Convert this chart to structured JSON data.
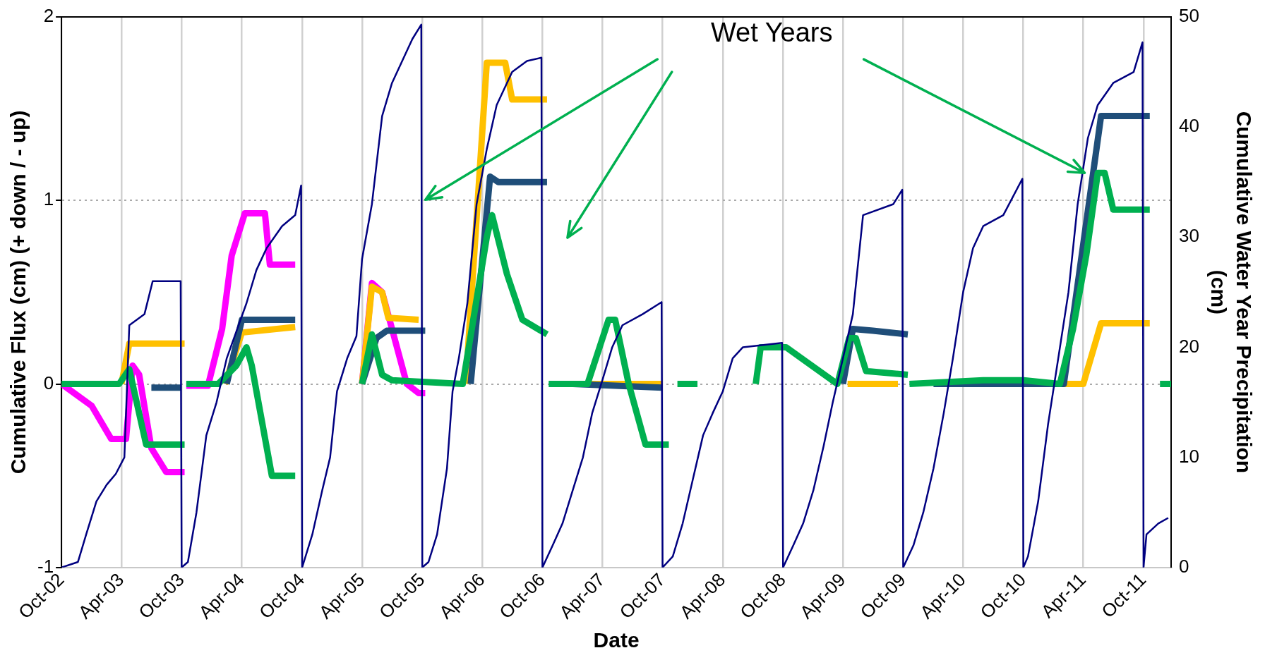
{
  "chart_data": {
    "type": "line",
    "xlabel": "Date",
    "ylabel": "Cumulative Flux (cm) (+ down / - up)",
    "y2label": "Cumulative Water Year Precipitation (cm)",
    "xlim": [
      "2002-10-01",
      "2011-12-24"
    ],
    "xticks": [
      {
        "value": "2002-10-01",
        "label": "Oct-02"
      },
      {
        "value": "2003-04-01",
        "label": "Apr-03"
      },
      {
        "value": "2003-10-01",
        "label": "Oct-03"
      },
      {
        "value": "2004-04-01",
        "label": "Apr-04"
      },
      {
        "value": "2004-10-01",
        "label": "Oct-04"
      },
      {
        "value": "2005-04-01",
        "label": "Apr-05"
      },
      {
        "value": "2005-10-01",
        "label": "Oct-05"
      },
      {
        "value": "2006-04-01",
        "label": "Apr-06"
      },
      {
        "value": "2006-10-01",
        "label": "Oct-06"
      },
      {
        "value": "2007-04-01",
        "label": "Apr-07"
      },
      {
        "value": "2007-10-01",
        "label": "Oct-07"
      },
      {
        "value": "2008-04-01",
        "label": "Apr-08"
      },
      {
        "value": "2008-10-01",
        "label": "Oct-08"
      },
      {
        "value": "2009-04-01",
        "label": "Apr-09"
      },
      {
        "value": "2009-10-01",
        "label": "Oct-09"
      },
      {
        "value": "2010-04-01",
        "label": "Apr-10"
      },
      {
        "value": "2010-10-01",
        "label": "Oct-10"
      },
      {
        "value": "2011-04-01",
        "label": "Apr-11"
      },
      {
        "value": "2011-10-01",
        "label": "Oct-11"
      }
    ],
    "ylim": [
      -1,
      2
    ],
    "yticks": [
      -1,
      0,
      1,
      2
    ],
    "y2lim": [
      0,
      50
    ],
    "y2ticks": [
      0,
      10,
      20,
      30,
      40,
      50
    ],
    "grid": true,
    "legend": false,
    "marker": "none",
    "line_style": "solid",
    "annotations": [
      {
        "text": "Wet Years",
        "x": "2011-04-05",
        "y": 1.15
      }
    ],
    "series": [
      {
        "color": "#ff00ff",
        "x": [
          "2002-10-01",
          "2003-01-01",
          "2003-03-01",
          "2003-04-15",
          "2003-05-05",
          "2003-05-25",
          "2003-07-01",
          "2003-08-15",
          "2003-10-10",
          "2003-10-12",
          "2003-10-15",
          "2003-12-20",
          "2004-02-01",
          "2004-03-01",
          "2004-04-10",
          "2004-06-10",
          "2004-06-25",
          "2004-09-10",
          "2004-12-01",
          "2005-04-01",
          "2005-05-01",
          "2005-06-01",
          "2005-07-01",
          "2005-08-15",
          "2005-09-20",
          "2005-10-10"
        ],
        "values": [
          0,
          -0.12,
          -0.3,
          -0.3,
          0.1,
          0.05,
          -0.35,
          -0.48,
          -0.48,
          null,
          -0.01,
          -0.01,
          0.3,
          0.7,
          0.93,
          0.93,
          0.65,
          0.65,
          null,
          0,
          0.55,
          0.5,
          0.3,
          0,
          -0.05,
          -0.05
        ]
      },
      {
        "color": "#ffc000",
        "x": [
          "2003-04-01",
          "2003-04-25",
          "2003-10-10",
          "2003-12-01",
          "2004-02-10",
          "2004-04-01",
          "2004-09-10",
          "2004-12-01",
          "2005-04-01",
          "2005-05-01",
          "2005-06-01",
          "2005-06-20",
          "2005-09-20",
          "2005-12-01",
          "2006-02-10",
          "2006-04-15",
          "2006-06-10",
          "2006-07-01",
          "2006-10-15",
          "2006-12-01",
          "2007-01-01",
          "2007-09-30",
          "2008-01-01",
          "2009-04-15",
          "2009-09-15",
          "2010-01-01",
          "2010-10-01",
          "2011-04-01",
          "2011-05-25",
          "2011-10-20"
        ],
        "values": [
          0,
          0.22,
          0.22,
          null,
          0,
          0.28,
          0.31,
          null,
          0,
          0.53,
          0.5,
          0.36,
          0.35,
          null,
          0,
          1.75,
          1.75,
          1.55,
          1.55,
          null,
          0,
          0,
          null,
          0,
          0,
          null,
          0,
          0,
          0.33,
          0.33
        ]
      },
      {
        "color": "#1f4e79",
        "x": [
          "2003-07-01",
          "2003-09-30",
          "2003-12-01",
          "2004-02-15",
          "2004-04-01",
          "2004-09-10",
          "2004-12-01",
          "2005-04-01",
          "2005-05-15",
          "2005-06-15",
          "2005-10-10",
          "2005-12-01",
          "2006-02-25",
          "2006-04-25",
          "2006-05-20",
          "2006-10-15",
          "2006-12-01",
          "2007-01-01",
          "2007-09-30",
          "2008-01-01",
          "2009-04-01",
          "2009-05-01",
          "2009-07-01",
          "2009-10-15",
          "2009-12-01",
          "2010-01-01",
          "2011-02-01",
          "2011-05-25",
          "2011-10-20"
        ],
        "values": [
          -0.02,
          -0.02,
          null,
          0,
          0.35,
          0.35,
          null,
          0,
          0.25,
          0.29,
          0.29,
          null,
          0,
          1.13,
          1.1,
          1.1,
          null,
          0,
          -0.02,
          null,
          0,
          0.3,
          0.29,
          0.27,
          null,
          0,
          0,
          1.46,
          1.46
        ]
      },
      {
        "color": "#00b050",
        "x": [
          "2002-10-01",
          "2003-03-25",
          "2003-04-25",
          "2003-06-15",
          "2003-10-10",
          "2003-10-12",
          "2003-10-15",
          "2004-01-20",
          "2004-03-15",
          "2004-04-15",
          "2004-05-01",
          "2004-07-01",
          "2004-09-10",
          "2004-12-01",
          "2005-04-01",
          "2005-05-01",
          "2005-06-01",
          "2005-07-01",
          "2006-02-01",
          "2006-04-15",
          "2006-05-01",
          "2006-06-15",
          "2006-08-01",
          "2006-10-15",
          "2006-10-17",
          "2006-10-20",
          "2007-02-15",
          "2007-04-20",
          "2007-05-10",
          "2007-06-20",
          "2007-08-10",
          "2007-10-20",
          "2007-11-01",
          "2007-11-15",
          "2008-01-15",
          "2008-03-01",
          "2008-07-10",
          "2008-07-25",
          "2008-10-10",
          "2009-03-15",
          "2009-04-20",
          "2009-05-10",
          "2009-06-10",
          "2009-10-15",
          "2009-10-17",
          "2009-10-20",
          "2010-06-01",
          "2010-10-01",
          "2011-01-20",
          "2011-03-01",
          "2011-04-10",
          "2011-05-15",
          "2011-06-05",
          "2011-07-01",
          "2011-10-20",
          "2011-11-01",
          "2011-11-20",
          "2011-12-24"
        ],
        "values": [
          0,
          0,
          0.08,
          -0.33,
          -0.33,
          null,
          0,
          0,
          0.1,
          0.2,
          0.1,
          -0.5,
          -0.5,
          null,
          0,
          0.27,
          0.05,
          0.02,
          0,
          0.8,
          0.92,
          0.6,
          0.35,
          0.27,
          null,
          0,
          0,
          0.35,
          0.35,
          0,
          -0.33,
          -0.33,
          null,
          0,
          0,
          null,
          0,
          0.2,
          0.2,
          0,
          0.25,
          0.25,
          0.07,
          0.05,
          null,
          0,
          0.02,
          0.02,
          0,
          0.3,
          0.7,
          1.15,
          1.15,
          0.95,
          0.95,
          null,
          0,
          0
        ]
      },
      {
        "color": "#000080",
        "axis": "y2",
        "x": [
          "2002-10-01",
          "2002-11-20",
          "2002-12-15",
          "2003-01-15",
          "2003-02-15",
          "2003-03-15",
          "2003-04-10",
          "2003-04-25",
          "2003-06-10",
          "2003-07-05",
          "2003-09-28",
          "2003-10-01",
          "2003-10-20",
          "2003-11-15",
          "2003-12-15",
          "2004-01-15",
          "2004-02-15",
          "2004-03-10",
          "2004-04-15",
          "2004-05-15",
          "2004-06-15",
          "2004-08-01",
          "2004-09-10",
          "2004-09-28",
          "2004-10-01",
          "2004-11-01",
          "2004-12-01",
          "2004-12-25",
          "2005-01-15",
          "2005-02-15",
          "2005-03-15",
          "2005-04-01",
          "2005-05-01",
          "2005-06-01",
          "2005-07-01",
          "2005-08-01",
          "2005-09-01",
          "2005-09-28",
          "2005-10-01",
          "2005-10-20",
          "2005-11-15",
          "2005-12-15",
          "2006-01-01",
          "2006-01-20",
          "2006-02-15",
          "2006-03-15",
          "2006-04-15",
          "2006-05-15",
          "2006-07-01",
          "2006-08-15",
          "2006-09-28",
          "2006-10-01",
          "2006-11-01",
          "2006-12-01",
          "2007-01-01",
          "2007-02-01",
          "2007-03-01",
          "2007-04-01",
          "2007-05-01",
          "2007-06-01",
          "2007-08-01",
          "2007-09-28",
          "2007-10-01",
          "2007-11-01",
          "2007-12-01",
          "2008-01-01",
          "2008-02-01",
          "2008-03-01",
          "2008-04-01",
          "2008-05-01",
          "2008-06-01",
          "2008-09-28",
          "2008-10-01",
          "2008-11-01",
          "2008-12-01",
          "2009-01-01",
          "2009-02-01",
          "2009-03-01",
          "2009-04-01",
          "2009-05-01",
          "2009-06-01",
          "2009-09-01",
          "2009-09-28",
          "2009-10-01",
          "2009-11-01",
          "2009-12-01",
          "2010-01-01",
          "2010-02-01",
          "2010-03-01",
          "2010-04-01",
          "2010-05-01",
          "2010-06-01",
          "2010-08-01",
          "2010-09-28",
          "2010-10-01",
          "2010-10-15",
          "2010-11-15",
          "2010-12-15",
          "2011-01-15",
          "2011-02-15",
          "2011-03-15",
          "2011-04-15",
          "2011-05-15",
          "2011-07-01",
          "2011-09-01",
          "2011-09-28",
          "2011-10-01",
          "2011-10-10",
          "2011-11-15",
          "2011-12-15"
        ],
        "values": [
          0,
          0.5,
          3,
          6,
          7.5,
          8.5,
          10,
          22,
          23,
          26,
          26,
          0,
          0.5,
          5,
          12,
          15,
          19,
          21,
          24,
          27,
          29,
          31,
          32,
          34.7,
          0,
          3,
          7,
          10,
          16,
          19,
          21,
          28,
          33,
          41,
          44,
          46,
          48,
          49.3,
          0,
          0.5,
          3,
          9,
          16,
          19,
          24,
          33,
          38,
          42,
          45,
          46,
          46.3,
          0,
          2,
          4,
          7,
          10,
          14,
          17,
          20,
          22,
          23,
          24.1,
          0,
          1,
          4,
          8,
          12,
          14,
          16,
          19,
          20,
          20.4,
          0,
          2,
          4,
          7,
          11,
          15,
          19,
          23,
          32,
          33,
          34.3,
          0,
          2,
          5,
          9,
          14,
          19,
          25,
          29,
          31,
          32,
          35.3,
          0,
          1,
          6,
          13,
          19,
          25,
          33,
          39,
          42,
          44,
          45,
          47.7,
          0,
          3,
          4,
          4.5
        ]
      }
    ]
  }
}
